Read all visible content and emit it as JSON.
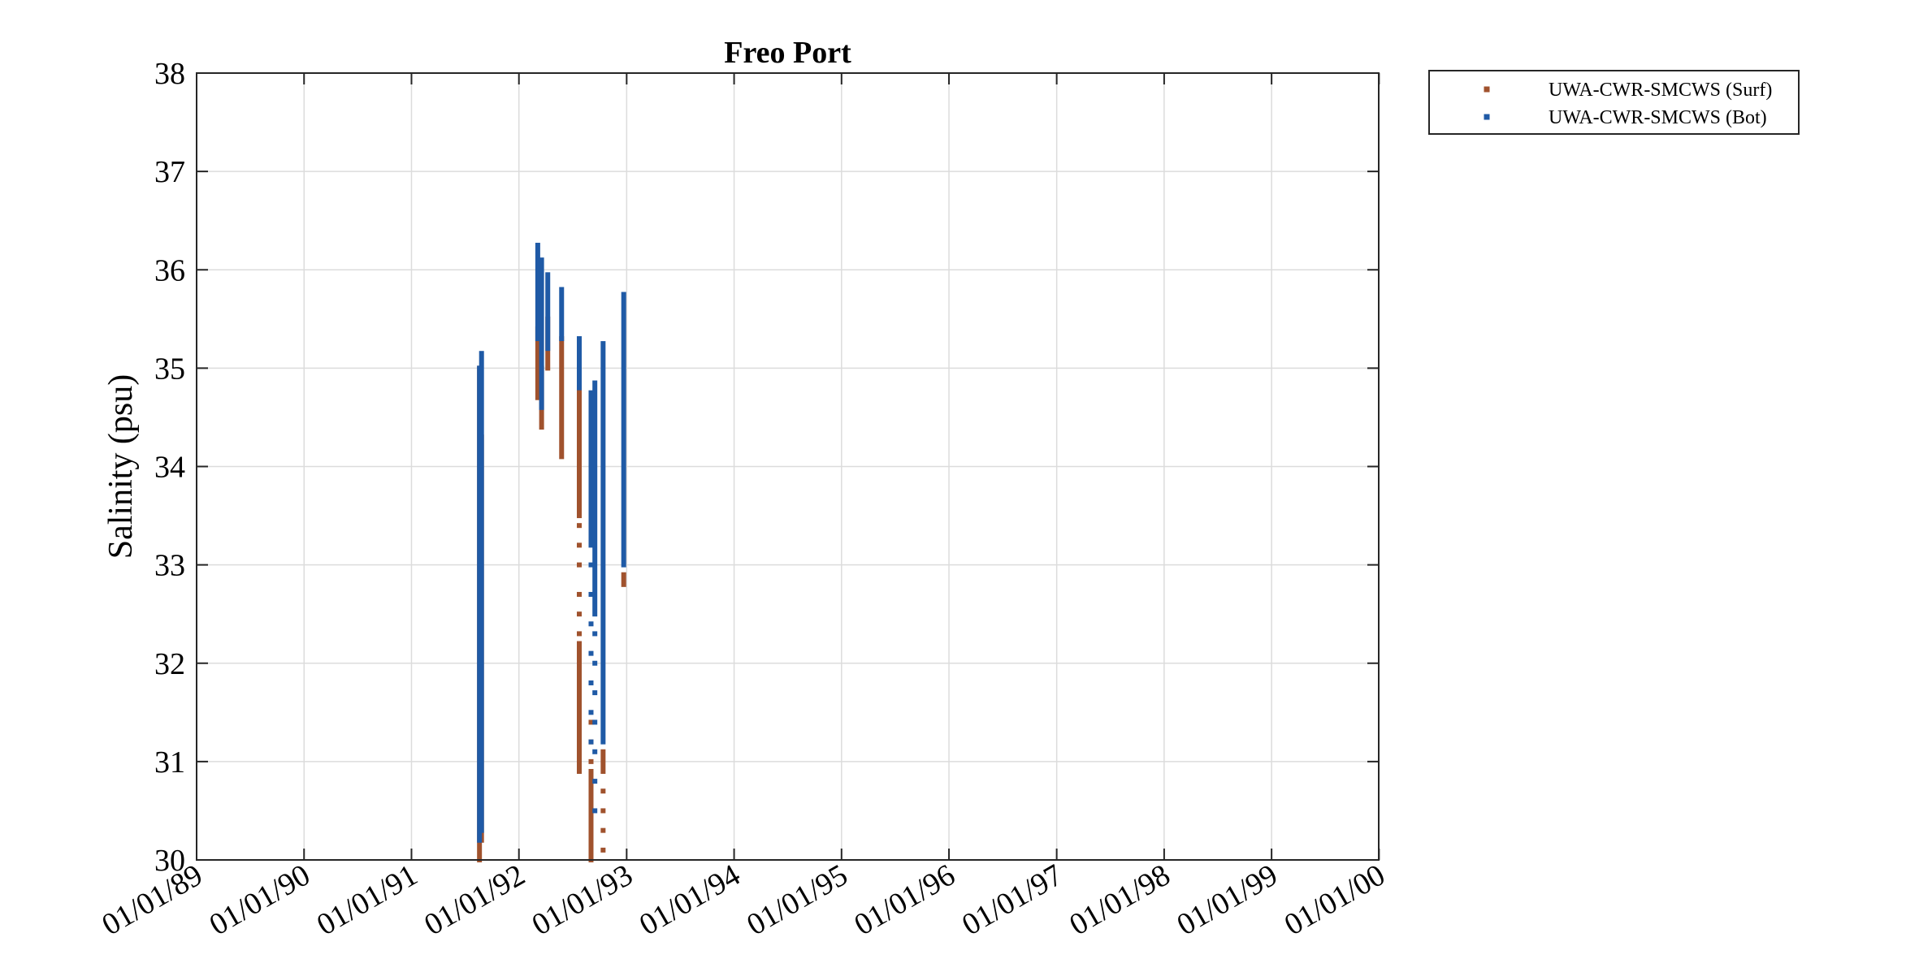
{
  "chart_data": {
    "type": "scatter",
    "title": "Freo Port",
    "xlabel": "",
    "ylabel": "Salinity (psu)",
    "x_axis_type": "date",
    "xlim": [
      "1989-01-01",
      "1999-12-31"
    ],
    "ylim": [
      30,
      38
    ],
    "yticks": [
      30,
      31,
      32,
      33,
      34,
      35,
      36,
      37,
      38
    ],
    "xticks": [
      "1989-01-01",
      "1990-01-01",
      "1991-01-01",
      "1992-01-01",
      "1993-01-01",
      "1994-01-01",
      "1995-01-01",
      "1996-01-01",
      "1997-01-01",
      "1998-01-01",
      "1999-01-01",
      "2000-01-01"
    ],
    "xtick_labels": [
      "01/01/89",
      "01/01/90",
      "01/01/91",
      "01/01/92",
      "01/01/93",
      "01/01/94",
      "01/01/95",
      "01/01/96",
      "01/01/97",
      "01/01/98",
      "01/01/99",
      "01/01/00"
    ],
    "grid": true,
    "legend_position": "outside-top-right",
    "series": [
      {
        "name": "UWA-CWR-SMCWS (Surf)",
        "color": "#A0522D",
        "marker": "square",
        "segments": [
          {
            "x": "1991-08-20",
            "y_min": 30.0,
            "y_max": 35.0
          },
          {
            "x": "1991-08-27",
            "y_min": 30.2,
            "y_max": 34.3
          },
          {
            "x": "1992-03-05",
            "y_min": 34.7,
            "y_max": 35.4
          },
          {
            "x": "1992-03-18",
            "y_min": 34.4,
            "y_max": 35.0
          },
          {
            "x": "1992-04-08",
            "y_min": 35.0,
            "y_max": 35.5
          },
          {
            "x": "1992-05-25",
            "y_min": 34.1,
            "y_max": 35.3
          },
          {
            "x": "1992-07-24",
            "y_min": 33.5,
            "y_max": 34.8
          },
          {
            "x": "1992-07-24",
            "y_min": 30.9,
            "y_max": 32.2
          },
          {
            "x": "1992-09-02",
            "y_min": 30.0,
            "y_max": 30.9
          },
          {
            "x": "1992-10-13",
            "y_min": 30.9,
            "y_max": 31.1
          },
          {
            "x": "1992-12-22",
            "y_min": 32.8,
            "y_max": 32.9
          }
        ],
        "sparse_points": [
          {
            "x": "1992-07-24",
            "y": [
              33.4,
              33.2,
              33.0,
              32.7,
              32.5,
              32.3
            ]
          },
          {
            "x": "1992-09-02",
            "y": [
              31.0,
              31.2,
              31.4
            ]
          },
          {
            "x": "1992-10-13",
            "y": [
              30.1,
              30.3,
              30.5,
              30.7
            ]
          }
        ]
      },
      {
        "name": "UWA-CWR-SMCWS (Bot)",
        "color": "#1F5AA6",
        "marker": "square",
        "segments": [
          {
            "x": "1991-08-20",
            "y_min": 30.2,
            "y_max": 35.0
          },
          {
            "x": "1991-08-27",
            "y_min": 30.3,
            "y_max": 35.15
          },
          {
            "x": "1992-03-05",
            "y_min": 35.3,
            "y_max": 36.25
          },
          {
            "x": "1992-03-18",
            "y_min": 34.6,
            "y_max": 36.1
          },
          {
            "x": "1992-04-08",
            "y_min": 35.2,
            "y_max": 35.95
          },
          {
            "x": "1992-05-25",
            "y_min": 35.3,
            "y_max": 35.8
          },
          {
            "x": "1992-07-24",
            "y_min": 34.8,
            "y_max": 35.3
          },
          {
            "x": "1992-09-02",
            "y_min": 33.2,
            "y_max": 34.75
          },
          {
            "x": "1992-09-15",
            "y_min": 32.5,
            "y_max": 34.85
          },
          {
            "x": "1992-10-13",
            "y_min": 31.2,
            "y_max": 35.25
          },
          {
            "x": "1992-12-22",
            "y_min": 33.0,
            "y_max": 35.75
          }
        ],
        "sparse_points": [
          {
            "x": "1992-09-02",
            "y": [
              33.0,
              32.7,
              32.4,
              32.1,
              31.8,
              31.5,
              31.2
            ]
          },
          {
            "x": "1992-09-15",
            "y": [
              32.3,
              32.0,
              31.7,
              31.4,
              31.1,
              30.8,
              30.5
            ]
          }
        ]
      }
    ]
  }
}
